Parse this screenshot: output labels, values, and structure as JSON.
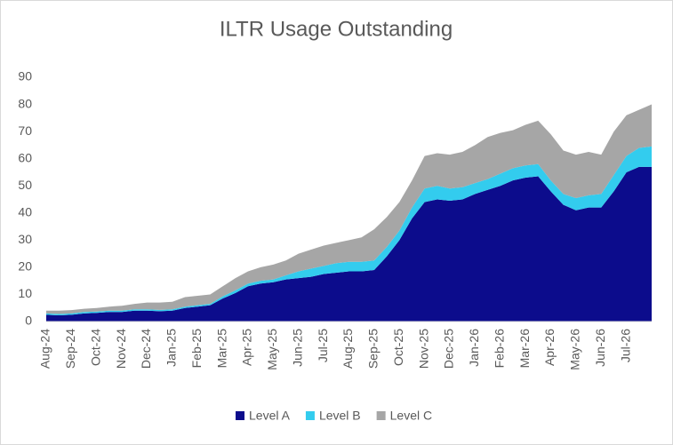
{
  "chart_data": {
    "type": "stacked_area",
    "title": "ILTR Usage Outstanding",
    "categories": [
      "Aug-24",
      null,
      "Sep-24",
      null,
      "Oct-24",
      null,
      "Nov-24",
      null,
      "Dec-24",
      null,
      "Jan-25",
      null,
      "Feb-25",
      null,
      "Mar-25",
      null,
      "Apr-25",
      null,
      "May-25",
      null,
      "Jun-25",
      null,
      "Jul-25",
      null,
      "Aug-25",
      null,
      "Sep-25",
      null,
      "Oct-25",
      null,
      "Nov-25",
      null,
      "Dec-25",
      null,
      "Jan-26",
      null,
      "Feb-26",
      null,
      "Mar-26",
      null,
      "Apr-26",
      null,
      "May-26",
      null,
      "Jun-26",
      null,
      "Jul-26",
      null,
      null
    ],
    "series": [
      {
        "name": "Level A",
        "color": "#0c0c8c",
        "values": [
          2.5,
          2.3,
          2.5,
          3,
          3.2,
          3.5,
          3.5,
          4,
          4,
          3.8,
          4,
          5,
          5.5,
          6,
          8.5,
          10.5,
          13,
          14,
          14.5,
          15.5,
          16,
          16.5,
          17.5,
          18,
          18.5,
          18.5,
          19,
          24,
          30,
          38,
          44,
          45,
          44.5,
          45,
          47,
          48.5,
          50,
          52,
          53,
          53.5,
          48,
          43,
          41,
          42,
          42,
          48,
          55,
          57,
          57
        ]
      },
      {
        "name": "Level B",
        "color": "#33ccee",
        "values": [
          0.5,
          0.5,
          0.5,
          0.5,
          0.5,
          0.5,
          0.5,
          0.5,
          0.5,
          0.5,
          0.5,
          0.5,
          0.5,
          0.5,
          0.8,
          1,
          1,
          1,
          1,
          1.5,
          2.5,
          3,
          3,
          3.5,
          3.5,
          3.5,
          3.5,
          3.5,
          3.5,
          4,
          5,
          5,
          4.5,
          4.5,
          4,
          4,
          4.5,
          4.5,
          4.5,
          4.5,
          4,
          4,
          4.5,
          4.5,
          5,
          6,
          6,
          7,
          7.5
        ]
      },
      {
        "name": "Level C",
        "color": "#a6a6a6",
        "values": [
          1,
          1.2,
          1.2,
          1.2,
          1.3,
          1.5,
          1.8,
          2,
          2.5,
          2.7,
          2.8,
          3.5,
          3.5,
          3.5,
          3.7,
          4.5,
          4.5,
          5,
          5.5,
          5.5,
          6.5,
          7,
          7.5,
          7.5,
          8,
          9,
          11.5,
          11,
          10.5,
          10,
          12,
          12,
          12.5,
          13,
          14,
          15.5,
          15,
          14,
          15,
          16,
          17,
          16,
          16,
          16,
          14.5,
          16,
          15,
          14,
          15.5
        ]
      }
    ],
    "ylim": [
      0,
      90
    ],
    "yticks": [
      0,
      10,
      20,
      30,
      40,
      50,
      60,
      70,
      80,
      90
    ],
    "grid": false,
    "legend": "bottom"
  }
}
